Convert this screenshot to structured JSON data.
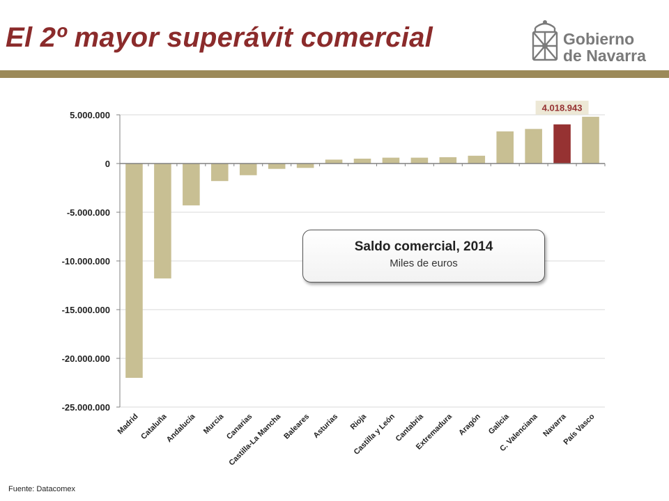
{
  "slide": {
    "title": "El 2º mayor superávit comercial",
    "source": "Fuente: Datacomex",
    "title_color": "#8B2B2B",
    "bar_color": "#9C8A59"
  },
  "logo": {
    "line1": "Gobierno",
    "line2": "de Navarra",
    "color": "#7A7A7A"
  },
  "callout": {
    "title": "Saldo comercial, 2014",
    "subtitle": "Miles de euros"
  },
  "chart_data": {
    "type": "bar",
    "title": "Saldo comercial, 2014",
    "ylabel": "Miles de euros",
    "ylim": [
      -25000000,
      5000000
    ],
    "yticks": [
      5000000,
      0,
      -5000000,
      -10000000,
      -15000000,
      -20000000,
      -25000000
    ],
    "ytick_labels": [
      "5.000.000",
      "0",
      "-5.000.000",
      "-10.000.000",
      "-15.000.000",
      "-20.000.000",
      "-25.000.000"
    ],
    "grid": true,
    "categories": [
      "Madrid",
      "Cataluña",
      "Andalucía",
      "Murcia",
      "Canarias",
      "Castilla-La Mancha",
      "Baleares",
      "Asturias",
      "Rioja",
      "Castilla y León",
      "Cantabria",
      "Extremadura",
      "Aragón",
      "Galicia",
      "C. Valenciana",
      "Navarra",
      "País Vasco"
    ],
    "values": [
      -22000000,
      -11800000,
      -4300000,
      -1800000,
      -1200000,
      -550000,
      -450000,
      400000,
      500000,
      600000,
      600000,
      650000,
      800000,
      3300000,
      3550000,
      4018943,
      4800000
    ],
    "highlight_index": 15,
    "highlight_label": "4.018.943",
    "colors": {
      "default": "#C8BF93",
      "highlight": "#963232",
      "grid": "#D9D9D9",
      "axis": "#808080",
      "label_box": "#EDE8D6"
    }
  }
}
